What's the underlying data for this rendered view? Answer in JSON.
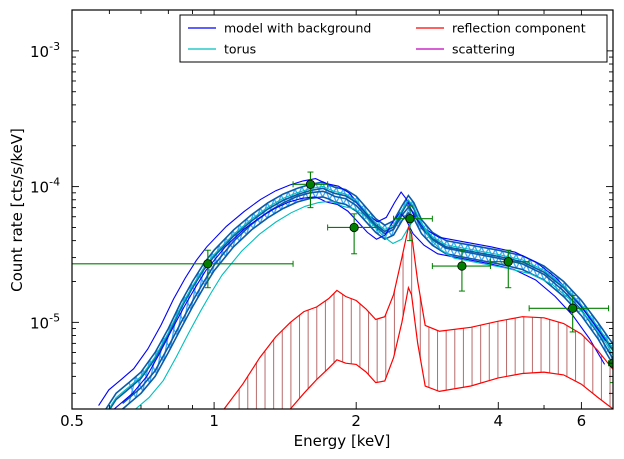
{
  "chart_data": {
    "type": "line",
    "xlabel": "Energy [keV]",
    "ylabel": "Count rate [cts/s/keV]",
    "xscale": "log",
    "yscale": "log",
    "xlim": [
      0.5,
      7.0
    ],
    "ylim": [
      2.3e-06,
      0.002
    ],
    "x_ticks": [
      {
        "value": 0.5,
        "label": "0.5"
      },
      {
        "value": 1,
        "label": "1"
      },
      {
        "value": 2,
        "label": "2"
      },
      {
        "value": 4,
        "label": "4"
      },
      {
        "value": 6,
        "label": "6"
      }
    ],
    "y_ticks": [
      {
        "value": 1e-05,
        "base": "10",
        "exp": "-5"
      },
      {
        "value": 0.0001,
        "base": "10",
        "exp": "-4"
      },
      {
        "value": 0.001,
        "base": "10",
        "exp": "-3"
      }
    ],
    "legend": {
      "position": "top-right",
      "entries": [
        {
          "label": "model with background",
          "color": "#0000ff"
        },
        {
          "label": "reflection component",
          "color": "#ff0000"
        },
        {
          "label": "torus",
          "color": "#00bfbf"
        },
        {
          "label": "scattering",
          "color": "#bf00bf"
        }
      ]
    },
    "colors": {
      "model": "#0000ff",
      "torus": "#00bfbf",
      "reflection": "#ff0000",
      "hatch_dark": "#0a5aa8",
      "hatch_light": "#3fa9f5",
      "data": "#007f00",
      "reflection_fill": "#b86a6a"
    },
    "model_upper": [
      [
        0.59,
        2.3e-06
      ],
      [
        0.62,
        3e-06
      ],
      [
        0.66,
        3.6e-06
      ],
      [
        0.7,
        4.3e-06
      ],
      [
        0.75,
        6e-06
      ],
      [
        0.8,
        9e-06
      ],
      [
        0.85,
        1.4e-05
      ],
      [
        0.9,
        2e-05
      ],
      [
        0.95,
        2.7e-05
      ],
      [
        1.0,
        3.4e-05
      ],
      [
        1.1,
        4.8e-05
      ],
      [
        1.2,
        6.2e-05
      ],
      [
        1.3,
        7.6e-05
      ],
      [
        1.4,
        8.8e-05
      ],
      [
        1.5,
        9.7e-05
      ],
      [
        1.6,
        0.000104
      ],
      [
        1.7,
        0.000108
      ],
      [
        1.75,
        0.000103
      ],
      [
        1.8,
        9.9e-05
      ],
      [
        1.9,
        9.5e-05
      ],
      [
        2.0,
        8.5e-05
      ],
      [
        2.1,
        7e-05
      ],
      [
        2.2,
        5.8e-05
      ],
      [
        2.3,
        5.2e-05
      ],
      [
        2.4,
        5.6e-05
      ],
      [
        2.5,
        7.2e-05
      ],
      [
        2.58,
        8.6e-05
      ],
      [
        2.65,
        7.6e-05
      ],
      [
        2.75,
        5.7e-05
      ],
      [
        2.9,
        4.6e-05
      ],
      [
        3.1,
        4e-05
      ],
      [
        3.5,
        3.7e-05
      ],
      [
        4.0,
        3.4e-05
      ],
      [
        4.5,
        3.1e-05
      ],
      [
        5.0,
        2.6e-05
      ],
      [
        5.5,
        2e-05
      ],
      [
        6.0,
        1.45e-05
      ],
      [
        6.5,
        1e-05
      ],
      [
        7.0,
        6.9e-06
      ]
    ],
    "model_lower": [
      [
        0.64,
        2.3e-06
      ],
      [
        0.7,
        3e-06
      ],
      [
        0.75,
        4e-06
      ],
      [
        0.8,
        6e-06
      ],
      [
        0.85,
        9e-06
      ],
      [
        0.9,
        1.3e-05
      ],
      [
        0.95,
        1.8e-05
      ],
      [
        1.0,
        2.4e-05
      ],
      [
        1.1,
        3.6e-05
      ],
      [
        1.2,
        4.8e-05
      ],
      [
        1.3,
        5.9e-05
      ],
      [
        1.4,
        6.9e-05
      ],
      [
        1.5,
        7.7e-05
      ],
      [
        1.6,
        8.2e-05
      ],
      [
        1.7,
        8.4e-05
      ],
      [
        1.75,
        8.1e-05
      ],
      [
        1.8,
        7.7e-05
      ],
      [
        1.9,
        7.4e-05
      ],
      [
        2.0,
        6.6e-05
      ],
      [
        2.1,
        5.5e-05
      ],
      [
        2.2,
        4.6e-05
      ],
      [
        2.3,
        4.1e-05
      ],
      [
        2.4,
        4.4e-05
      ],
      [
        2.5,
        5.6e-05
      ],
      [
        2.58,
        6.4e-05
      ],
      [
        2.65,
        5.8e-05
      ],
      [
        2.75,
        4.5e-05
      ],
      [
        2.9,
        3.7e-05
      ],
      [
        3.1,
        3.2e-05
      ],
      [
        3.5,
        2.95e-05
      ],
      [
        4.0,
        2.7e-05
      ],
      [
        4.5,
        2.45e-05
      ],
      [
        5.0,
        2.05e-05
      ],
      [
        5.5,
        1.55e-05
      ],
      [
        6.0,
        1.12e-05
      ],
      [
        6.5,
        7.6e-06
      ],
      [
        7.0,
        4.9e-06
      ]
    ],
    "reflection_upper": [
      [
        1.05,
        2.3e-06
      ],
      [
        1.15,
        3.5e-06
      ],
      [
        1.25,
        5.5e-06
      ],
      [
        1.35,
        7.8e-06
      ],
      [
        1.45,
        1e-05
      ],
      [
        1.55,
        1.2e-05
      ],
      [
        1.65,
        1.3e-05
      ],
      [
        1.75,
        1.5e-05
      ],
      [
        1.82,
        1.72e-05
      ],
      [
        1.9,
        1.55e-05
      ],
      [
        2.0,
        1.45e-05
      ],
      [
        2.1,
        1.25e-05
      ],
      [
        2.2,
        1.05e-05
      ],
      [
        2.3,
        1.1e-05
      ],
      [
        2.4,
        1.6e-05
      ],
      [
        2.5,
        3e-05
      ],
      [
        2.58,
        5e-05
      ],
      [
        2.62,
        4.5e-05
      ],
      [
        2.7,
        2e-05
      ],
      [
        2.8,
        9.5e-06
      ],
      [
        3.0,
        8.6e-06
      ],
      [
        3.5,
        9.2e-06
      ],
      [
        4.0,
        1.02e-05
      ],
      [
        4.5,
        1.1e-05
      ],
      [
        5.0,
        1.08e-05
      ],
      [
        5.5,
        9.8e-06
      ],
      [
        6.0,
        8.2e-06
      ],
      [
        6.5,
        6.2e-06
      ],
      [
        7.0,
        4.5e-06
      ]
    ],
    "reflection_lower": [
      [
        1.45,
        2.3e-06
      ],
      [
        1.55,
        3e-06
      ],
      [
        1.65,
        3.8e-06
      ],
      [
        1.75,
        4.6e-06
      ],
      [
        1.82,
        5.3e-06
      ],
      [
        1.9,
        5e-06
      ],
      [
        2.0,
        4.9e-06
      ],
      [
        2.1,
        4.3e-06
      ],
      [
        2.2,
        3.6e-06
      ],
      [
        2.3,
        3.7e-06
      ],
      [
        2.4,
        5.5e-06
      ],
      [
        2.5,
        1e-05
      ],
      [
        2.58,
        1.8e-05
      ],
      [
        2.62,
        1.6e-05
      ],
      [
        2.7,
        7e-06
      ],
      [
        2.8,
        3.4e-06
      ],
      [
        3.0,
        3.1e-06
      ],
      [
        3.5,
        3.4e-06
      ],
      [
        4.0,
        3.9e-06
      ],
      [
        4.5,
        4.2e-06
      ],
      [
        5.0,
        4.3e-06
      ],
      [
        5.5,
        4.1e-06
      ],
      [
        6.0,
        3.5e-06
      ],
      [
        6.5,
        2.8e-06
      ],
      [
        7.0,
        2.3e-06
      ]
    ],
    "data_points": [
      {
        "x": 0.97,
        "y": 2.7e-05,
        "xlo": 0.5,
        "xhi": 1.47,
        "ylo": 1.8e-05,
        "yhi": 3.4e-05
      },
      {
        "x": 1.6,
        "y": 0.000104,
        "xlo": 1.47,
        "xhi": 1.74,
        "ylo": 7e-05,
        "yhi": 0.000128
      },
      {
        "x": 1.98,
        "y": 5e-05,
        "xlo": 1.74,
        "xhi": 2.22,
        "ylo": 3.2e-05,
        "yhi": 6.3e-05
      },
      {
        "x": 2.6,
        "y": 5.8e-05,
        "xlo": 2.4,
        "xhi": 2.9,
        "ylo": 4e-05,
        "yhi": 7.2e-05
      },
      {
        "x": 3.35,
        "y": 2.6e-05,
        "xlo": 2.9,
        "xhi": 3.85,
        "ylo": 1.7e-05,
        "yhi": 3.4e-05
      },
      {
        "x": 4.2,
        "y": 2.8e-05,
        "xlo": 3.85,
        "xhi": 4.65,
        "ylo": 1.8e-05,
        "yhi": 3.4e-05
      },
      {
        "x": 5.75,
        "y": 1.27e-05,
        "xlo": 4.65,
        "xhi": 6.85,
        "ylo": 8.5e-06,
        "yhi": 1.58e-05
      },
      {
        "x": 7.0,
        "y": 5e-06,
        "xlo": 6.85,
        "xhi": 7.0,
        "ylo": 3.6e-06,
        "yhi": 6.5e-06
      }
    ]
  }
}
